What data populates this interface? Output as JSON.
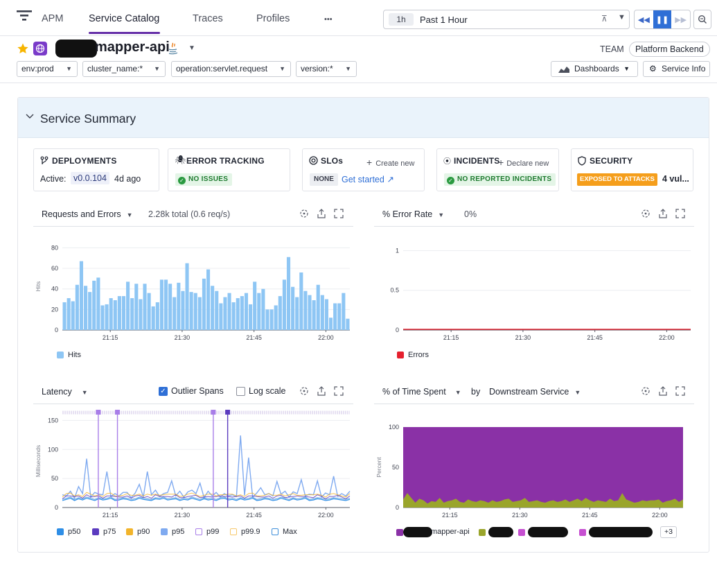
{
  "nav": {
    "app": "APM",
    "tabs": [
      "Service Catalog",
      "Traces",
      "Profiles"
    ],
    "more": "•••",
    "time": {
      "short": "1h",
      "label": "Past 1 Hour"
    }
  },
  "service": {
    "name": "mapper-api",
    "team_label": "TEAM",
    "team": "Platform Backend",
    "filters": [
      "env:prod",
      "cluster_name:*",
      "operation:servlet.request",
      "version:*"
    ],
    "dashboards": "Dashboards",
    "service_info": "Service Info"
  },
  "summary": {
    "title": "Service Summary",
    "deployments": {
      "title": "DEPLOYMENTS",
      "active_label": "Active:",
      "version": "v0.0.104",
      "age": "4d ago"
    },
    "error_tracking": {
      "title": "ERROR TRACKING",
      "status": "NO ISSUES"
    },
    "slos": {
      "title": "SLOs",
      "create": "Create new",
      "none": "NONE",
      "get_started": "Get started"
    },
    "incidents": {
      "title": "INCIDENTS",
      "declare": "Declare new",
      "status": "NO REPORTED INCIDENTS"
    },
    "security": {
      "title": "SECURITY",
      "badge": "EXPOSED TO ATTACKS",
      "vulns": "4 vul..."
    }
  },
  "charts": {
    "requests": {
      "title": "Requests and Errors",
      "sub": "2.28k total (0.6 req/s)"
    },
    "error_rate": {
      "title": "% Error Rate",
      "sub": "0%"
    },
    "latency": {
      "title": "Latency",
      "outlier": "Outlier Spans",
      "log": "Log scale"
    },
    "time_spent": {
      "title": "% of Time Spent",
      "by": "by",
      "group": "Downstream Service",
      "more": "+3"
    }
  },
  "colors": {
    "accent": "#632ca6",
    "hits": "#8ec6f4",
    "errors": "#e5202e",
    "p50": "#2e8ee6",
    "p75": "#5b3bbf",
    "p90": "#f2b42b",
    "p95": "#7faaf0",
    "p99": "#a87de8",
    "p999": "#f6c86a",
    "max": "#3d8ed9",
    "purple_area": "#8a31a6",
    "olive_area": "#9aa52b"
  },
  "chart_data": [
    {
      "type": "bar",
      "title": "Requests and Errors",
      "ylabel": "Hits",
      "ylim": [
        0,
        85
      ],
      "yticks": [
        0,
        20,
        40,
        60,
        80
      ],
      "xticks": [
        "21:15",
        "21:30",
        "21:45",
        "22:00"
      ],
      "x_range_minutes": [
        5,
        65
      ],
      "series": [
        {
          "name": "Hits",
          "values": [
            27,
            31,
            28,
            44,
            67,
            43,
            37,
            48,
            51,
            24,
            25,
            31,
            29,
            33,
            33,
            47,
            31,
            45,
            30,
            45,
            36,
            23,
            27,
            49,
            49,
            45,
            32,
            46,
            38,
            65,
            37,
            36,
            32,
            50,
            59,
            43,
            38,
            26,
            32,
            36,
            27,
            31,
            33,
            36,
            25,
            47,
            36,
            40,
            20,
            20,
            24,
            33,
            49,
            71,
            42,
            32,
            56,
            38,
            34,
            29,
            44,
            34,
            30,
            12,
            26,
            26,
            36,
            11
          ]
        }
      ],
      "legend": [
        "Hits"
      ]
    },
    {
      "type": "line",
      "title": "% Error Rate",
      "ylim": [
        0,
        1.1
      ],
      "yticks": [
        0,
        0.5,
        1
      ],
      "xticks": [
        "21:15",
        "21:30",
        "21:45",
        "22:00"
      ],
      "series": [
        {
          "name": "Errors",
          "values": [
            0,
            0
          ]
        }
      ],
      "legend": [
        "Errors"
      ]
    },
    {
      "type": "line",
      "title": "Latency",
      "ylabel": "Milliseconds",
      "ylim": [
        0,
        160
      ],
      "yticks": [
        0,
        50,
        100,
        150
      ],
      "xticks": [
        "21:15",
        "21:30",
        "21:45",
        "22:00"
      ],
      "outlier_minutes": [
        12.5,
        16.5,
        36.5,
        39.5
      ],
      "series": [
        {
          "name": "p95",
          "values": [
            22,
            20,
            28,
            16,
            36,
            24,
            84,
            18,
            26,
            23,
            22,
            62,
            19,
            24,
            20,
            26,
            26,
            17,
            25,
            40,
            18,
            62,
            22,
            30,
            19,
            24,
            26,
            46,
            20,
            28,
            18,
            27,
            30,
            24,
            42,
            17,
            28,
            20,
            26,
            18,
            24,
            20,
            22,
            19,
            124,
            21,
            86,
            18,
            25,
            34,
            22,
            24,
            20,
            45,
            23,
            28,
            18,
            27,
            24,
            48,
            20,
            23,
            22,
            46,
            18,
            25,
            22,
            54,
            19,
            24,
            20,
            28
          ]
        },
        {
          "name": "p50",
          "values": [
            12,
            14,
            16,
            12,
            15,
            13,
            16,
            14,
            12,
            15,
            13,
            14,
            16,
            12,
            13,
            15,
            14,
            12,
            13,
            16,
            14,
            13,
            12,
            15,
            14,
            16,
            13,
            14,
            15,
            12,
            14,
            13,
            16,
            14,
            12,
            15,
            13,
            14,
            12,
            15,
            16,
            13,
            14,
            12,
            15,
            13,
            14,
            16,
            12,
            13,
            15,
            14,
            12,
            13,
            16,
            14,
            12,
            15,
            13,
            14,
            16,
            12,
            13,
            15,
            14,
            12,
            13,
            15,
            14,
            13,
            12,
            14
          ]
        }
      ],
      "legend": [
        "p50",
        "p75",
        "p90",
        "p95",
        "p99",
        "p99.9",
        "Max"
      ]
    },
    {
      "type": "area",
      "title": "% of Time Spent by Downstream Service",
      "ylabel": "Percent",
      "ylim": [
        0,
        100
      ],
      "yticks": [
        0,
        50,
        100
      ],
      "xticks": [
        "21:15",
        "21:30",
        "21:45",
        "22:00"
      ],
      "series": [
        {
          "name": "olive",
          "values": [
            10,
            18,
            12,
            6,
            11,
            9,
            5,
            8,
            7,
            12,
            6,
            8,
            9,
            11,
            7,
            6,
            10,
            8,
            7,
            9,
            8,
            6,
            9,
            7,
            8,
            10,
            11,
            7,
            8,
            9,
            12,
            7,
            8,
            9,
            7,
            6,
            8,
            9,
            7,
            8,
            10,
            7,
            9,
            11,
            8,
            12,
            9,
            7,
            9,
            8,
            7,
            11,
            8,
            9,
            18,
            10,
            8,
            6,
            7,
            9,
            8,
            9,
            9,
            10,
            6,
            8,
            9,
            11,
            7,
            10
          ]
        },
        {
          "name": "mapper-api",
          "values": [
            100
          ]
        }
      ],
      "legend": [
        "mapper-api",
        "+3"
      ]
    }
  ]
}
